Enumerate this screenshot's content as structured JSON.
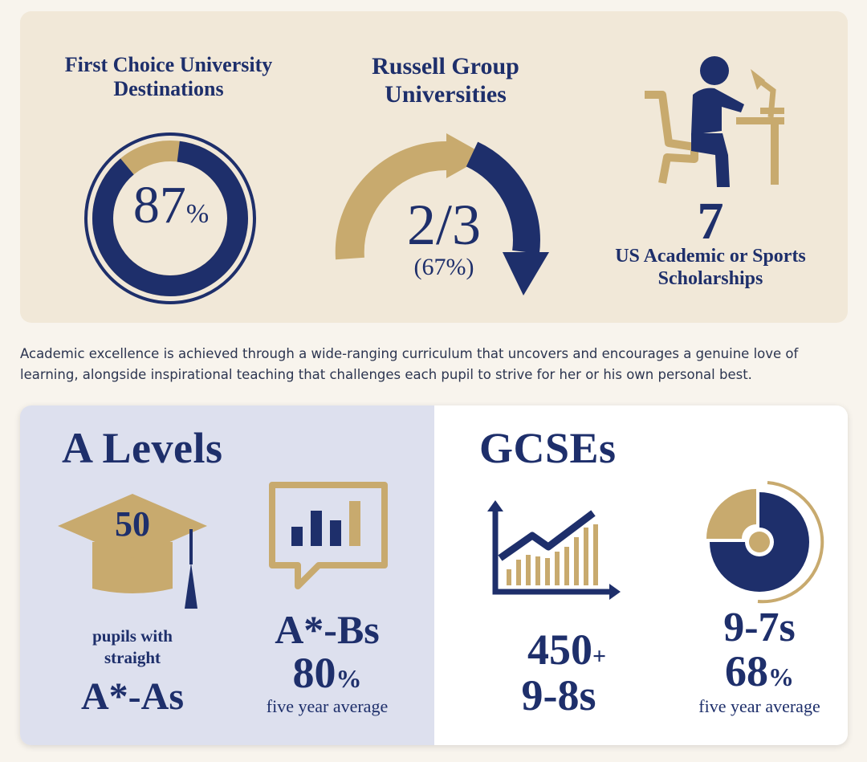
{
  "top": {
    "first_choice": {
      "title_line1": "First Choice University",
      "title_line2": "Destinations",
      "value": "87",
      "unit": "%",
      "percent": 87
    },
    "russell": {
      "title_line1": "Russell Group",
      "title_line2": "Universities",
      "value": "2/3",
      "sub": "(67%)",
      "fraction": 0.67
    },
    "scholarships": {
      "value": "7",
      "label_line1": "US Academic or Sports",
      "label_line2": "Scholarships",
      "icon": "student-desk-icon"
    }
  },
  "intro_text_line1": "Academic excellence is achieved through a wide-ranging curriculum that uncovers and encourages a genuine love of",
  "intro_text_line2": "learning, alongside inspirational teaching that challenges each pupil to strive for her or his own personal best.",
  "alevels": {
    "heading": "A Levels",
    "cap_value": "50",
    "cap_caption_line1": "pupils with",
    "cap_caption_line2": "straight",
    "cap_grade": "A*-As",
    "chart_icon": "bar-chart-speech-bubble-icon",
    "grade": "A*-Bs",
    "percent": "80",
    "unit": "%",
    "caption": "five year average"
  },
  "gcses": {
    "heading": "GCSEs",
    "trend_icon": "line-chart-icon",
    "count": "450",
    "plus": "+",
    "count_grade": "9-8s",
    "donut_icon": "donut-chart-icon",
    "grade": "9-7s",
    "percent": "68",
    "unit": "%",
    "caption": "five year average"
  },
  "colors": {
    "navy": "#1e2f6b",
    "gold": "#c8aa6e",
    "cream": "#f1e8d8",
    "lavender": "#dde0ee"
  }
}
